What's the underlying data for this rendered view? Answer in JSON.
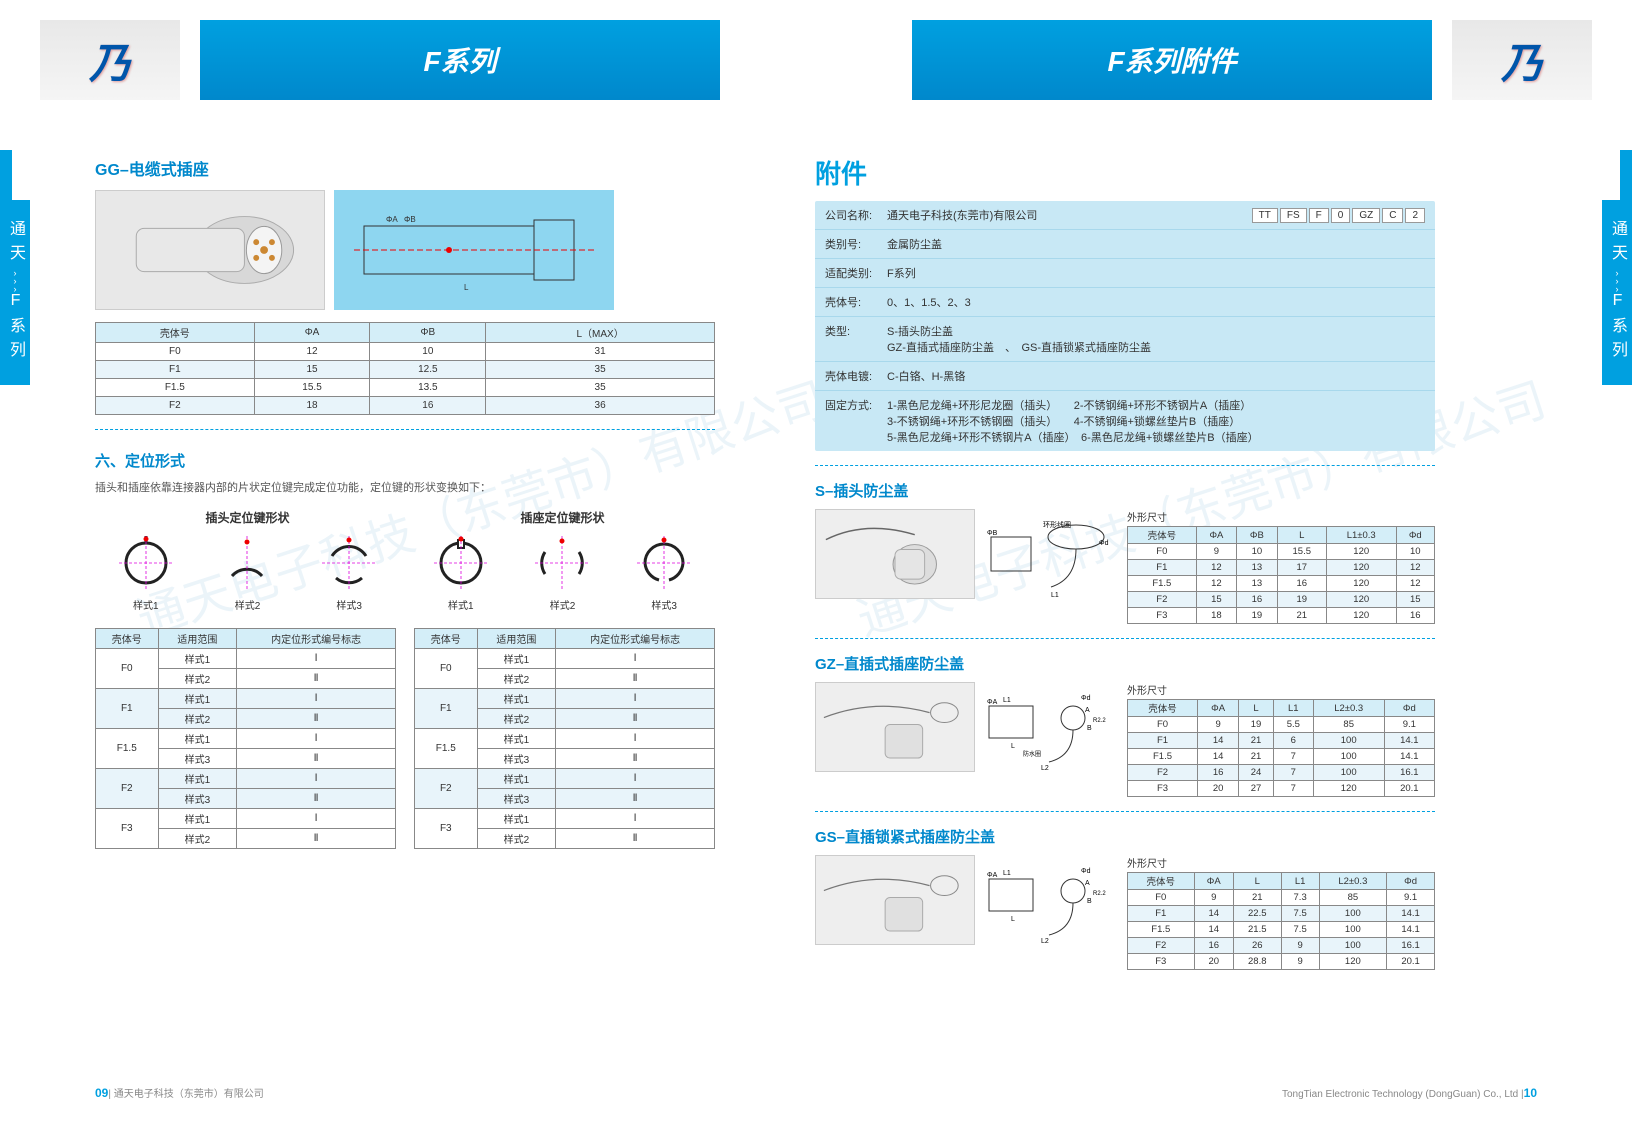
{
  "header": {
    "left_title": "F系列",
    "right_title": "F系列附件",
    "logo_letter": "乃"
  },
  "sidetab": {
    "top": "通天",
    "chev": "›››",
    "bottom": "F系列"
  },
  "left_page": {
    "gg_title": "GG–电缆式插座",
    "gg_table": {
      "headers": [
        "壳体号",
        "ΦA",
        "ΦB",
        "L（MAX）"
      ],
      "rows": [
        [
          "F0",
          "12",
          "10",
          "31"
        ],
        [
          "F1",
          "15",
          "12.5",
          "35"
        ],
        [
          "F1.5",
          "15.5",
          "13.5",
          "35"
        ],
        [
          "F2",
          "18",
          "16",
          "36"
        ]
      ]
    },
    "positioning": {
      "heading": "六、定位形式",
      "desc": "插头和插座依靠连接器内部的片状定位键完成定位功能，定位键的形状变换如下：",
      "plug_title": "插头定位键形状",
      "socket_title": "插座定位键形状",
      "labels": [
        "样式1",
        "样式2",
        "样式3"
      ]
    },
    "pos_tables": {
      "headers": [
        "壳体号",
        "适用范围",
        "内定位形式编号标志"
      ],
      "left_rows": [
        [
          "F0",
          "样式1",
          "Ⅰ"
        ],
        [
          "",
          "样式2",
          "Ⅱ"
        ],
        [
          "F1",
          "样式1",
          "Ⅰ"
        ],
        [
          "",
          "样式2",
          "Ⅱ"
        ],
        [
          "F1.5",
          "样式1",
          "Ⅰ"
        ],
        [
          "",
          "样式3",
          "Ⅱ"
        ],
        [
          "F2",
          "样式1",
          "Ⅰ"
        ],
        [
          "",
          "样式3",
          "Ⅱ"
        ],
        [
          "F3",
          "样式1",
          "Ⅰ"
        ],
        [
          "",
          "样式2",
          "Ⅱ"
        ]
      ],
      "right_rows": [
        [
          "F0",
          "样式1",
          "Ⅰ"
        ],
        [
          "",
          "样式2",
          "Ⅱ"
        ],
        [
          "F1",
          "样式1",
          "Ⅰ"
        ],
        [
          "",
          "样式2",
          "Ⅱ"
        ],
        [
          "F1.5",
          "样式1",
          "Ⅰ"
        ],
        [
          "",
          "样式3",
          "Ⅱ"
        ],
        [
          "F2",
          "样式1",
          "Ⅰ"
        ],
        [
          "",
          "样式3",
          "Ⅱ"
        ],
        [
          "F3",
          "样式1",
          "Ⅰ"
        ],
        [
          "",
          "样式2",
          "Ⅱ"
        ]
      ]
    }
  },
  "right_page": {
    "attachments_title": "附件",
    "attr": {
      "company_label": "公司名称:",
      "company": "通天电子科技(东莞市)有限公司",
      "code": [
        "TT",
        "FS",
        "F",
        "0",
        "GZ",
        "C",
        "2"
      ],
      "rows": [
        {
          "label": "类别号:",
          "val": "金属防尘盖"
        },
        {
          "label": "适配类别:",
          "val": "F系列"
        },
        {
          "label": "壳体号:",
          "val": "0、1、1.5、2、3"
        },
        {
          "label": "类型:",
          "val": "S-插头防尘盖\nGZ-直插式插座防尘盖　、　GS-直插锁紧式插座防尘盖"
        },
        {
          "label": "壳体电镀:",
          "val": "C-白铬、H-黑铬"
        },
        {
          "label": "固定方式:",
          "val": "1-黑色尼龙绳+环形尼龙圈（插头）　　2-不锈钢绳+环形不锈钢片A（插座）\n3-不锈钢绳+环形不锈钢圈（插头）　　4-不锈钢绳+锁螺丝垫片B（插座）\n5-黑色尼龙绳+环形不锈钢片A（插座）　6-黑色尼龙绳+锁螺丝垫片B（插座）"
        }
      ]
    },
    "s_section": {
      "title": "S–插头防尘盖",
      "caption": "外形尺寸",
      "headers": [
        "壳体号",
        "ΦA",
        "ΦB",
        "L",
        "L1±0.3",
        "Φd"
      ],
      "rows": [
        [
          "F0",
          "9",
          "10",
          "15.5",
          "120",
          "10"
        ],
        [
          "F1",
          "12",
          "13",
          "17",
          "120",
          "12"
        ],
        [
          "F1.5",
          "12",
          "13",
          "16",
          "120",
          "12"
        ],
        [
          "F2",
          "15",
          "16",
          "19",
          "120",
          "15"
        ],
        [
          "F3",
          "18",
          "19",
          "21",
          "120",
          "16"
        ]
      ]
    },
    "gz_section": {
      "title": "GZ–直插式插座防尘盖",
      "caption": "外形尺寸",
      "headers": [
        "壳体号",
        "ΦA",
        "L",
        "L1",
        "L2±0.3",
        "Φd"
      ],
      "rows": [
        [
          "F0",
          "9",
          "19",
          "5.5",
          "85",
          "9.1"
        ],
        [
          "F1",
          "14",
          "21",
          "6",
          "100",
          "14.1"
        ],
        [
          "F1.5",
          "14",
          "21",
          "7",
          "100",
          "14.1"
        ],
        [
          "F2",
          "16",
          "24",
          "7",
          "100",
          "16.1"
        ],
        [
          "F3",
          "20",
          "27",
          "7",
          "120",
          "20.1"
        ]
      ]
    },
    "gs_section": {
      "title": "GS–直插锁紧式插座防尘盖",
      "caption": "外形尺寸",
      "headers": [
        "壳体号",
        "ΦA",
        "L",
        "L1",
        "L2±0.3",
        "Φd"
      ],
      "rows": [
        [
          "F0",
          "9",
          "21",
          "7.3",
          "85",
          "9.1"
        ],
        [
          "F1",
          "14",
          "22.5",
          "7.5",
          "100",
          "14.1"
        ],
        [
          "F1.5",
          "14",
          "21.5",
          "7.5",
          "100",
          "14.1"
        ],
        [
          "F2",
          "16",
          "26",
          "9",
          "100",
          "16.1"
        ],
        [
          "F3",
          "20",
          "28.8",
          "9",
          "120",
          "20.1"
        ]
      ]
    }
  },
  "footer": {
    "left_num": "09",
    "left_text": "通天电子科技（东莞市）有限公司",
    "right_text": "TongTian Electronic Technology (DongGuan) Co., Ltd",
    "right_num": "10"
  },
  "watermark": "通天电子科技（东莞市）有限公司",
  "colors": {
    "brand": "#00a0e0",
    "brand_dark": "#0088cc",
    "th_bg": "#d4eef8",
    "alt_bg": "#e8f4fa",
    "attr_bg": "#c8e8f5"
  }
}
